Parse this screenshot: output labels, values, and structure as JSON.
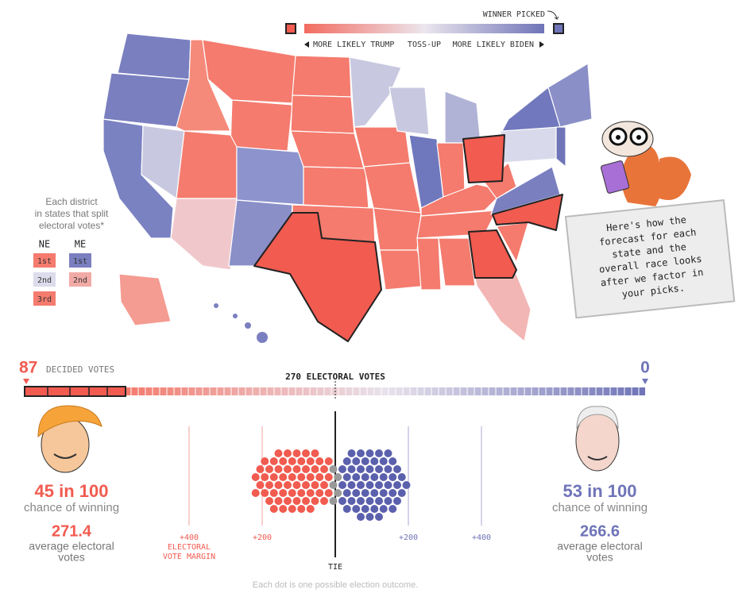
{
  "legend": {
    "winner_picked": "WINNER PICKED",
    "trump": "MORE LIKELY TRUMP",
    "tossup": "TOSS-UP",
    "biden": "MORE LIKELY BIDEN"
  },
  "district_key": {
    "note": [
      "Each district",
      "in states that split",
      "electoral votes*"
    ],
    "columns": [
      {
        "state": "NE",
        "districts": [
          "1st",
          "2nd",
          "3rd"
        ]
      },
      {
        "state": "ME",
        "districts": [
          "1st",
          "2nd"
        ]
      }
    ]
  },
  "bubble": {
    "lines": [
      "Here's how the",
      "forecast for each",
      "state and the",
      "overall race looks",
      "after we factor in",
      "your picks."
    ]
  },
  "bar": {
    "trump_decided": "87",
    "decided_label": "DECIDED VOTES",
    "biden_decided": "0",
    "threshold": "270 ELECTORAL VOTES"
  },
  "candidates": [
    {
      "chance": "45 in 100",
      "chance_label": "chance of winning",
      "average": "271.4",
      "average_label": [
        "average electoral",
        "votes"
      ]
    },
    {
      "chance": "53 in 100",
      "chance_label": "chance of winning",
      "average": "266.6",
      "average_label": [
        "average electoral",
        "votes"
      ]
    }
  ],
  "margin_axis": {
    "ticks": [
      "+400",
      "+200",
      "+200",
      "+400"
    ],
    "title": [
      "ELECTORAL",
      "VOTE MARGIN"
    ],
    "center": "TIE"
  },
  "footnote": "Each dot is one possible election outcome."
}
